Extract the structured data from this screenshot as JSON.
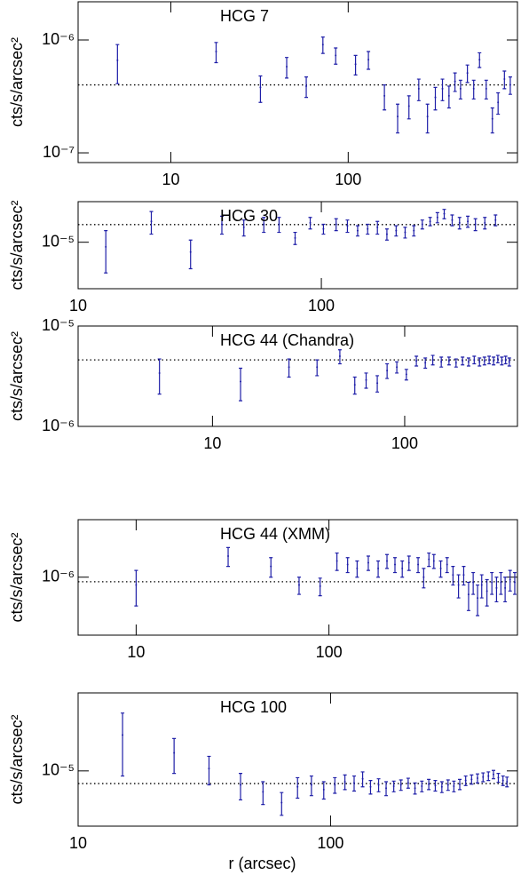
{
  "chart_data": [
    {
      "type": "errorbar",
      "title": "HCG 7",
      "ylabel": "cts/s/arcsec²",
      "xlog": true,
      "ylog": true,
      "color": "#1f1fa8",
      "xlim": [
        3,
        900
      ],
      "ylim": [
        8.2e-08,
        2.18e-06
      ],
      "xticks": [
        10,
        100
      ],
      "yticks": [
        {
          "value": 1e-07,
          "label": "10⁻⁷"
        },
        {
          "value": 1e-06,
          "label": "10⁻⁶"
        }
      ],
      "hline": 4e-07,
      "x": [
        5,
        18,
        32,
        45,
        58,
        72,
        85,
        110,
        130,
        160,
        190,
        220,
        250,
        280,
        310,
        340,
        370,
        400,
        430,
        470,
        510,
        550,
        600,
        650,
        700,
        760,
        820
      ],
      "values": [
        6.6e-07,
        7.9e-07,
        3.8e-07,
        5.8e-07,
        3.9e-07,
        9.1e-07,
        7.3e-07,
        6.1e-07,
        6.7e-07,
        3.2e-07,
        2.1e-07,
        2.6e-07,
        3.7e-07,
        2.1e-07,
        3.1e-07,
        3.7e-07,
        3.2e-07,
        4.3e-07,
        3.7e-07,
        5.1e-07,
        3.7e-07,
        6.7e-07,
        3.7e-07,
        2e-07,
        2.8e-07,
        4.5e-07,
        4e-07
      ],
      "errors": [
        2.5e-07,
        1.6e-07,
        1e-07,
        1.2e-07,
        8e-08,
        1.5e-07,
        1.2e-07,
        1.2e-07,
        1.2e-07,
        8e-08,
        6e-08,
        6e-08,
        8e-08,
        6e-08,
        7e-08,
        8e-08,
        7e-08,
        8e-08,
        7e-08,
        9e-08,
        7e-08,
        1e-07,
        7e-08,
        5e-08,
        6e-08,
        8e-08,
        7e-08
      ]
    },
    {
      "type": "errorbar",
      "title": "HCG 30",
      "ylabel": "cts/s/arcsec²",
      "xlog": true,
      "ylog": true,
      "color": "#1f1fa8",
      "xlim": [
        10,
        640
      ],
      "ylim": [
        3.5e-06,
        2.5e-05
      ],
      "xticks": [
        10,
        100
      ],
      "yticks": [
        {
          "value": 1e-05,
          "label": "10⁻⁵"
        }
      ],
      "hline": 1.49e-05,
      "x": [
        13,
        20,
        29,
        39,
        48,
        58,
        67,
        78,
        90,
        102,
        115,
        128,
        141,
        155,
        170,
        186,
        203,
        221,
        240,
        260,
        280,
        300,
        320,
        345,
        370,
        400,
        430,
        470,
        520
      ],
      "values": [
        9e-06,
        1.6e-05,
        8e-06,
        1.5e-05,
        1.4e-05,
        1.5e-05,
        1.5e-05,
        1.1e-05,
        1.55e-05,
        1.35e-05,
        1.5e-05,
        1.45e-05,
        1.3e-05,
        1.35e-05,
        1.4e-05,
        1.2e-05,
        1.3e-05,
        1.25e-05,
        1.3e-05,
        1.5e-05,
        1.6e-05,
        1.75e-05,
        1.9e-05,
        1.65e-05,
        1.55e-05,
        1.6e-05,
        1.5e-05,
        1.55e-05,
        1.65e-05
      ],
      "errors": [
        4e-06,
        4e-06,
        2.5e-06,
        3e-06,
        2.5e-06,
        2.5e-06,
        2.5e-06,
        1.5e-06,
        2e-06,
        1.5e-06,
        2e-06,
        2e-06,
        1.5e-06,
        1.5e-06,
        2e-06,
        1.5e-06,
        1.5e-06,
        1.5e-06,
        1.5e-06,
        1.5e-06,
        1.5e-06,
        2e-06,
        2e-06,
        2e-06,
        2e-06,
        2e-06,
        2e-06,
        2e-06,
        2e-06
      ]
    },
    {
      "type": "errorbar",
      "title": "HCG 44 (Chandra)",
      "ylabel": "cts/s/arcsec²",
      "xlog": true,
      "ylog": true,
      "color": "#1f1fa8",
      "xlim": [
        2,
        386
      ],
      "ylim": [
        1e-06,
        1e-05
      ],
      "xticks": [
        10,
        100
      ],
      "yticks": [
        {
          "value": 1e-06,
          "label": "10⁻⁶"
        },
        {
          "value": 1e-05,
          "label": "10⁻⁵"
        }
      ],
      "hline": 4.6e-06,
      "x": [
        5.3,
        14,
        25,
        35,
        46,
        55,
        63,
        72,
        81,
        91,
        102,
        115,
        128,
        140,
        155,
        170,
        185,
        200,
        215,
        230,
        245,
        260,
        275,
        290,
        305,
        320,
        335,
        350
      ],
      "values": [
        3.4e-06,
        2.8e-06,
        3.9e-06,
        3.9e-06,
        5e-06,
        2.6e-06,
        2.9e-06,
        2.7e-06,
        3.6e-06,
        3.9e-06,
        3.3e-06,
        4.5e-06,
        4.3e-06,
        4.6e-06,
        4.4e-06,
        4.5e-06,
        4.3e-06,
        4.5e-06,
        4.4e-06,
        4.6e-06,
        4.4e-06,
        4.5e-06,
        4.6e-06,
        4.5e-06,
        4.7e-06,
        4.5e-06,
        4.6e-06,
        4.4e-06
      ],
      "errors": [
        1.3e-06,
        1e-06,
        8e-07,
        7e-07,
        8e-07,
        5e-07,
        5e-07,
        5e-07,
        6e-07,
        5e-07,
        4e-07,
        5e-07,
        5e-07,
        5e-07,
        5e-07,
        4e-07,
        4e-07,
        4e-07,
        4e-07,
        4e-07,
        4e-07,
        4e-07,
        4e-07,
        4e-07,
        4e-07,
        4e-07,
        4e-07,
        4e-07
      ]
    },
    {
      "type": "errorbar",
      "title": "HCG 44 (XMM)",
      "ylabel": "cts/s/arcsec²",
      "xlog": true,
      "ylog": true,
      "color": "#1f1fa8",
      "xlim": [
        5,
        950
      ],
      "ylim": [
        3e-07,
        3.3e-06
      ],
      "xticks": [
        10,
        100
      ],
      "yticks": [
        {
          "value": 1e-06,
          "label": "10⁻⁶"
        }
      ],
      "hline": 9.1e-07,
      "x": [
        10,
        30,
        50,
        70,
        90,
        110,
        125,
        140,
        160,
        180,
        200,
        220,
        240,
        260,
        290,
        310,
        330,
        350,
        380,
        410,
        440,
        470,
        500,
        530,
        560,
        590,
        620,
        660,
        700,
        740,
        780,
        820,
        870,
        920
      ],
      "values": [
        8.5e-07,
        1.55e-06,
        1.25e-06,
        8.5e-07,
        8.3e-07,
        1.4e-06,
        1.3e-06,
        1.2e-06,
        1.35e-06,
        1.2e-06,
        1.4e-06,
        1.3e-06,
        1.2e-06,
        1.35e-06,
        1.3e-06,
        1e-06,
        1.45e-06,
        1.4e-06,
        1.2e-06,
        1.3e-06,
        1.05e-06,
        8.5e-07,
        1.05e-06,
        7e-07,
        9e-07,
        6.5e-07,
        8.5e-07,
        7.5e-07,
        9e-07,
        8e-07,
        9e-07,
        8e-07,
        9.5e-07,
        9e-07
      ],
      "errors": [
        3e-07,
        3e-07,
        2.5e-07,
        1.5e-07,
        1.5e-07,
        2.5e-07,
        2e-07,
        2e-07,
        2e-07,
        2e-07,
        2e-07,
        2e-07,
        2e-07,
        2e-07,
        2e-07,
        2e-07,
        2e-07,
        2e-07,
        2e-07,
        2e-07,
        2e-07,
        2e-07,
        2e-07,
        2e-07,
        2e-07,
        2e-07,
        2e-07,
        2e-07,
        2e-07,
        2e-07,
        2e-07,
        2e-07,
        2e-07,
        2e-07
      ]
    },
    {
      "type": "errorbar",
      "title": "HCG 100",
      "ylabel": "cts/s/arcsec²",
      "xlabel": "r (arcsec)",
      "xlog": true,
      "ylog": true,
      "color": "#1f1fa8",
      "xlim": [
        10,
        550
      ],
      "ylim": [
        3.2e-06,
        5e-05
      ],
      "xticks": [
        10,
        100
      ],
      "yticks": [
        {
          "value": 1e-05,
          "label": "10⁻⁵"
        }
      ],
      "hline": 7.7e-06,
      "x": [
        15,
        24,
        33,
        44,
        54,
        64,
        74,
        84,
        94,
        104,
        114,
        124,
        134,
        144,
        155,
        166,
        178,
        190,
        203,
        216,
        230,
        245,
        260,
        276,
        292,
        308,
        325,
        343,
        362,
        382,
        402,
        422,
        442,
        462,
        482,
        500
      ],
      "values": [
        2.1e-05,
        1.45e-05,
        1.05e-05,
        7.5e-06,
        6.5e-06,
        5.2e-06,
        7.2e-06,
        7.5e-06,
        6.8e-06,
        7.5e-06,
        8e-06,
        7.8e-06,
        8.5e-06,
        7.2e-06,
        7.5e-06,
        7e-06,
        7.3e-06,
        7.5e-06,
        7.8e-06,
        7e-06,
        7.3e-06,
        7.6e-06,
        7.4e-06,
        7.2e-06,
        7.5e-06,
        7.3e-06,
        7.6e-06,
        8.2e-06,
        8.4e-06,
        8.6e-06,
        8.8e-06,
        9e-06,
        9.3e-06,
        8.7e-06,
        8.2e-06,
        8e-06
      ],
      "errors": [
        1.2e-05,
        5e-06,
        3e-06,
        2e-06,
        1.5e-06,
        1.2e-06,
        1.5e-06,
        1.5e-06,
        1.2e-06,
        1.2e-06,
        1.2e-06,
        1.2e-06,
        1.3e-06,
        1e-06,
        1e-06,
        1e-06,
        8e-07,
        8e-07,
        8e-07,
        8e-07,
        8e-07,
        8e-07,
        8e-07,
        8e-07,
        8e-07,
        8e-07,
        8e-07,
        8e-07,
        8e-07,
        8e-07,
        8e-07,
        8e-07,
        8e-07,
        8e-07,
        8e-07,
        8e-07
      ]
    }
  ]
}
